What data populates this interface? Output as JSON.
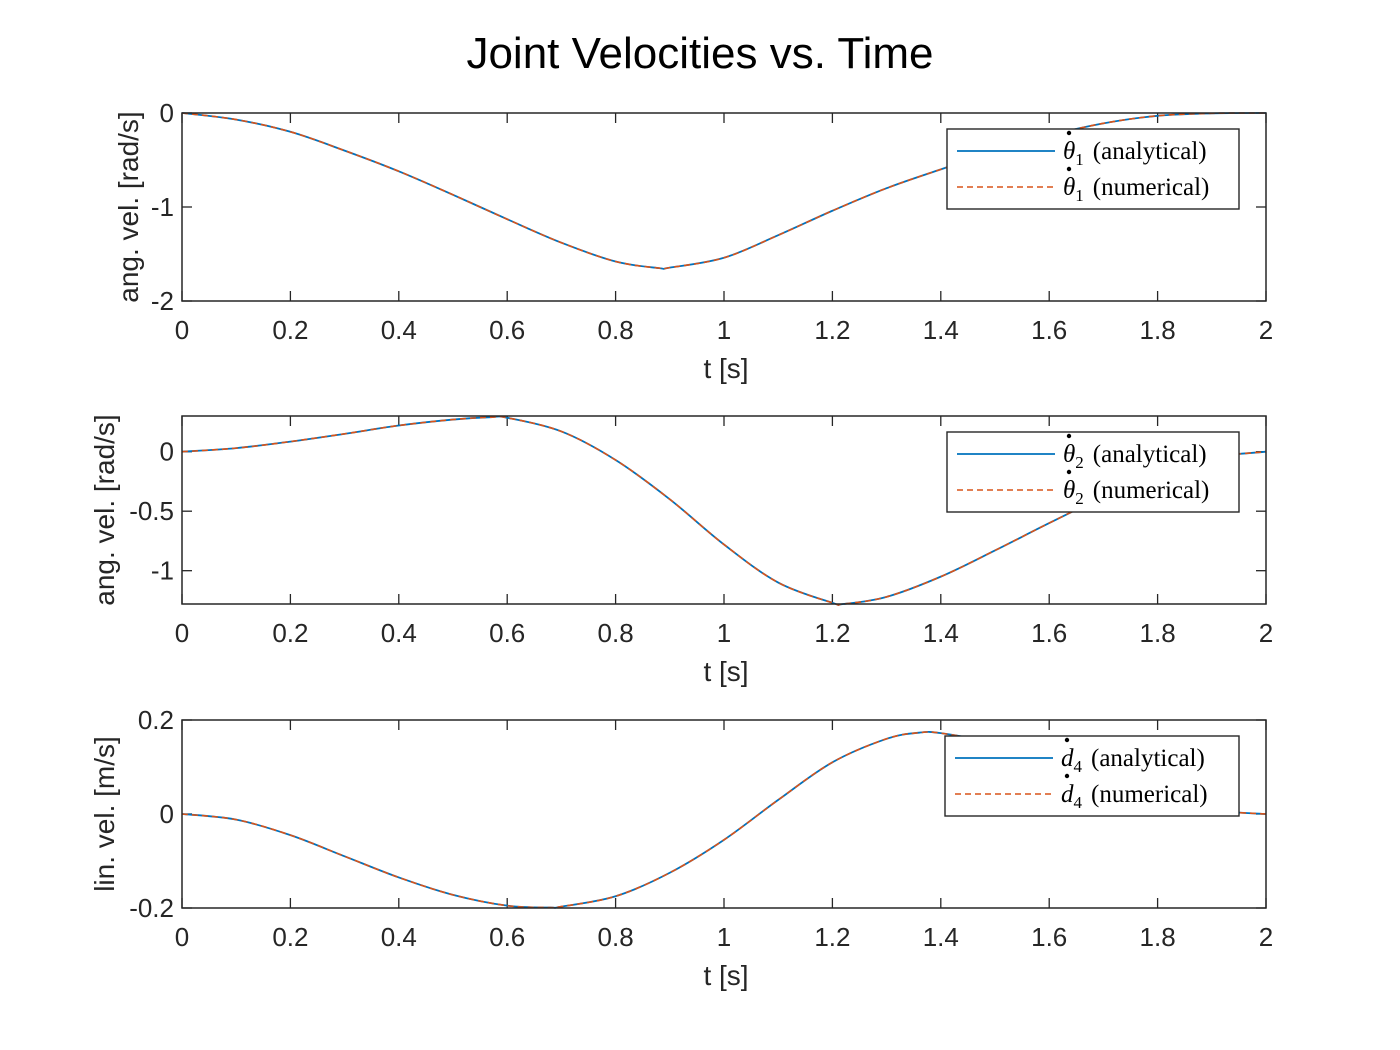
{
  "figure": {
    "title": "Joint Velocities vs. Time",
    "colors": {
      "analytical": "#0072BD",
      "numerical": "#D95319",
      "axes": "#262626"
    }
  },
  "chart_data": [
    {
      "type": "line",
      "xlabel": "t [s]",
      "ylabel": "ang. vel. [rad/s]",
      "xlim": [
        0,
        2
      ],
      "ylim": [
        -2,
        0
      ],
      "xticks": [
        0,
        0.2,
        0.4,
        0.6,
        0.8,
        1,
        1.2,
        1.4,
        1.6,
        1.8,
        2
      ],
      "xtick_labels": [
        "0",
        "0.2",
        "0.4",
        "0.6",
        "0.8",
        "1",
        "1.2",
        "1.4",
        "1.6",
        "1.8",
        "2"
      ],
      "yticks": [
        -2,
        -1,
        0
      ],
      "ytick_labels": [
        "-2",
        "-1",
        "0"
      ],
      "grid": false,
      "legend": "top-right",
      "x": [
        0,
        0.1,
        0.2,
        0.3,
        0.4,
        0.5,
        0.6,
        0.7,
        0.8,
        0.88,
        0.9,
        1.0,
        1.1,
        1.2,
        1.3,
        1.4,
        1.5,
        1.6,
        1.7,
        1.8,
        1.9,
        2.0
      ],
      "series": [
        {
          "name": "θ̇1 (analytical)",
          "symbol": "θ",
          "sub": "1",
          "suffix": "(analytical)",
          "style": "solid",
          "values": [
            0,
            -0.07,
            -0.2,
            -0.4,
            -0.62,
            -0.87,
            -1.13,
            -1.38,
            -1.58,
            -1.65,
            -1.645,
            -1.54,
            -1.3,
            -1.04,
            -0.8,
            -0.6,
            -0.41,
            -0.24,
            -0.11,
            -0.03,
            -0.004,
            0
          ]
        },
        {
          "name": "θ̇1 (numerical)",
          "symbol": "θ",
          "sub": "1",
          "suffix": "(numerical)",
          "style": "dashed",
          "values": [
            0,
            -0.07,
            -0.2,
            -0.4,
            -0.62,
            -0.87,
            -1.13,
            -1.38,
            -1.58,
            -1.65,
            -1.645,
            -1.54,
            -1.3,
            -1.04,
            -0.8,
            -0.6,
            -0.41,
            -0.24,
            -0.11,
            -0.03,
            -0.004,
            0
          ]
        }
      ]
    },
    {
      "type": "line",
      "xlabel": "t [s]",
      "ylabel": "ang. vel. [rad/s]",
      "xlim": [
        0,
        2
      ],
      "ylim": [
        -1.28,
        0.3
      ],
      "xticks": [
        0,
        0.2,
        0.4,
        0.6,
        0.8,
        1,
        1.2,
        1.4,
        1.6,
        1.8,
        2
      ],
      "xtick_labels": [
        "0",
        "0.2",
        "0.4",
        "0.6",
        "0.8",
        "1",
        "1.2",
        "1.4",
        "1.6",
        "1.8",
        "2"
      ],
      "yticks": [
        -1,
        -0.5,
        0
      ],
      "ytick_labels": [
        "-1",
        "-0.5",
        "0"
      ],
      "grid": false,
      "legend": "top-right",
      "x": [
        0,
        0.1,
        0.2,
        0.3,
        0.4,
        0.5,
        0.57,
        0.6,
        0.7,
        0.8,
        0.9,
        1.0,
        1.1,
        1.2,
        1.22,
        1.3,
        1.4,
        1.5,
        1.6,
        1.7,
        1.8,
        1.9,
        2.0
      ],
      "series": [
        {
          "name": "θ̇2 (analytical)",
          "symbol": "θ",
          "sub": "2",
          "suffix": "(analytical)",
          "style": "solid",
          "values": [
            0,
            0.03,
            0.085,
            0.15,
            0.22,
            0.27,
            0.29,
            0.285,
            0.17,
            -0.07,
            -0.4,
            -0.78,
            -1.1,
            -1.27,
            -1.28,
            -1.22,
            -1.05,
            -0.83,
            -0.6,
            -0.38,
            -0.19,
            -0.05,
            0
          ]
        },
        {
          "name": "θ̇2 (numerical)",
          "symbol": "θ",
          "sub": "2",
          "suffix": "(numerical)",
          "style": "dashed",
          "values": [
            0,
            0.03,
            0.085,
            0.15,
            0.22,
            0.27,
            0.29,
            0.285,
            0.17,
            -0.07,
            -0.4,
            -0.78,
            -1.1,
            -1.27,
            -1.28,
            -1.22,
            -1.05,
            -0.83,
            -0.6,
            -0.38,
            -0.19,
            -0.05,
            0
          ]
        }
      ]
    },
    {
      "type": "line",
      "xlabel": "t [s]",
      "ylabel": "lin. vel. [m/s]",
      "xlim": [
        0,
        2
      ],
      "ylim": [
        -0.2,
        0.2
      ],
      "xticks": [
        0,
        0.2,
        0.4,
        0.6,
        0.8,
        1,
        1.2,
        1.4,
        1.6,
        1.8,
        2
      ],
      "xtick_labels": [
        "0",
        "0.2",
        "0.4",
        "0.6",
        "0.8",
        "1",
        "1.2",
        "1.4",
        "1.6",
        "1.8",
        "2"
      ],
      "yticks": [
        -0.2,
        0,
        0.2
      ],
      "ytick_labels": [
        "-0.2",
        "0",
        "0.2"
      ],
      "grid": false,
      "legend": "top-right",
      "x": [
        0,
        0.1,
        0.2,
        0.3,
        0.4,
        0.5,
        0.6,
        0.68,
        0.7,
        0.8,
        0.9,
        1.0,
        1.1,
        1.2,
        1.3,
        1.36,
        1.4,
        1.5,
        1.6,
        1.7,
        1.8,
        1.9,
        2.0
      ],
      "series": [
        {
          "name": "ḋ4 (analytical)",
          "symbol": "d",
          "sub": "4",
          "suffix": "(analytical)",
          "style": "solid",
          "values": [
            0,
            -0.012,
            -0.045,
            -0.09,
            -0.135,
            -0.172,
            -0.195,
            -0.199,
            -0.197,
            -0.175,
            -0.125,
            -0.055,
            0.03,
            0.11,
            0.16,
            0.173,
            0.172,
            0.15,
            0.11,
            0.068,
            0.032,
            0.008,
            0
          ]
        },
        {
          "name": "ḋ4 (numerical)",
          "symbol": "d",
          "sub": "4",
          "suffix": "(numerical)",
          "style": "dashed",
          "values": [
            0,
            -0.012,
            -0.045,
            -0.09,
            -0.135,
            -0.172,
            -0.195,
            -0.199,
            -0.197,
            -0.175,
            -0.125,
            -0.055,
            0.03,
            0.11,
            0.16,
            0.173,
            0.172,
            0.15,
            0.11,
            0.068,
            0.032,
            0.008,
            0
          ]
        }
      ]
    }
  ]
}
